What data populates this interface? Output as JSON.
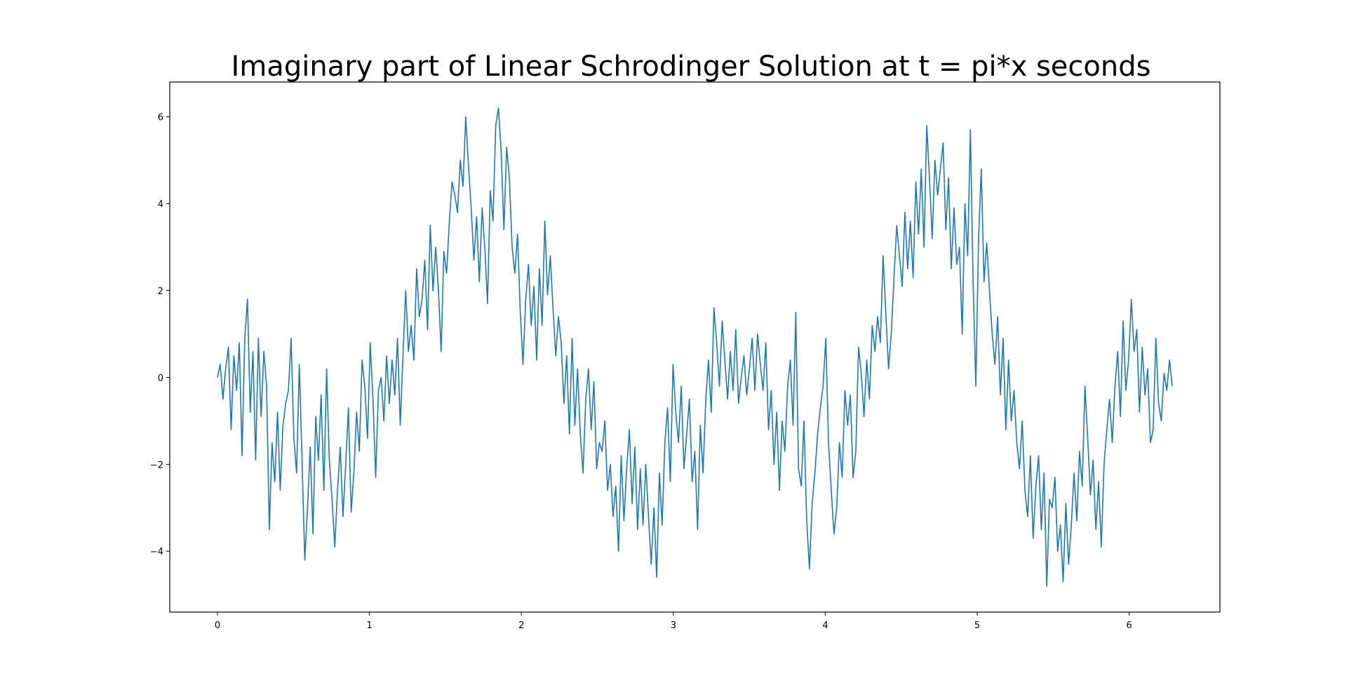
{
  "chart_data": {
    "type": "line",
    "title": "Imaginary part of Linear Schrodinger Solution at t = pi*x seconds",
    "xlabel": "",
    "ylabel": "",
    "xlim": [
      -0.314,
      6.597
    ],
    "ylim": [
      -5.4,
      6.8
    ],
    "x_ticks": [
      0,
      1,
      2,
      3,
      4,
      5,
      6
    ],
    "x_tick_labels": [
      "0",
      "1",
      "2",
      "3",
      "4",
      "5",
      "6"
    ],
    "y_ticks": [
      -4,
      -2,
      0,
      2,
      4,
      6
    ],
    "y_tick_labels": [
      "−4",
      "−2",
      "0",
      "2",
      "4",
      "6"
    ],
    "grid": false,
    "legend": "none",
    "line_color": "#1f77b4",
    "series": [
      {
        "x_start": 0,
        "x_end": 6.2832,
        "values": [
          0.0,
          0.3,
          -0.5,
          0.2,
          0.7,
          -1.2,
          0.5,
          -0.3,
          0.8,
          -1.8,
          0.9,
          1.8,
          -0.8,
          0.6,
          -1.9,
          0.9,
          -0.9,
          0.6,
          -0.2,
          -3.5,
          -1.5,
          -2.4,
          -0.8,
          -2.6,
          -1.1,
          -0.6,
          -0.3,
          0.9,
          -1.4,
          -2.2,
          0.3,
          -1.9,
          -4.2,
          -3.0,
          -1.6,
          -3.6,
          -0.9,
          -1.9,
          -0.4,
          -2.6,
          0.2,
          -1.9,
          -2.8,
          -3.9,
          -2.6,
          -1.6,
          -3.2,
          -2.0,
          -0.7,
          -3.1,
          -2.2,
          -0.8,
          -1.7,
          0.4,
          -0.2,
          -1.4,
          0.8,
          -0.5,
          -2.3,
          -0.3,
          0.0,
          -1.0,
          0.5,
          -0.6,
          0.4,
          -0.4,
          0.9,
          -1.1,
          0.5,
          2.0,
          0.6,
          1.2,
          0.4,
          2.5,
          1.4,
          1.8,
          2.7,
          1.1,
          3.5,
          2.0,
          3.0,
          2.0,
          0.6,
          2.9,
          2.4,
          3.6,
          4.5,
          4.2,
          3.8,
          5.0,
          4.4,
          6.0,
          4.9,
          3.9,
          2.7,
          3.7,
          2.2,
          3.9,
          3.0,
          1.7,
          4.3,
          3.6,
          5.8,
          6.2,
          5.2,
          3.4,
          5.3,
          4.6,
          3.0,
          2.4,
          3.3,
          1.5,
          0.3,
          1.8,
          2.6,
          1.2,
          2.1,
          0.4,
          2.5,
          1.2,
          3.6,
          1.9,
          2.8,
          1.6,
          0.5,
          1.4,
          0.8,
          -0.6,
          0.5,
          -1.3,
          0.9,
          -1.1,
          0.2,
          -1.3,
          -2.2,
          -0.5,
          0.2,
          -1.2,
          -0.1,
          -2.1,
          -1.5,
          -1.7,
          -1.0,
          -2.6,
          -2.0,
          -3.2,
          -2.5,
          -4.0,
          -1.8,
          -3.3,
          -2.1,
          -1.2,
          -2.9,
          -1.6,
          -3.5,
          -2.1,
          -3.4,
          -2.0,
          -3.2,
          -4.3,
          -3.0,
          -4.6,
          -2.2,
          -3.4,
          -1.5,
          -0.7,
          -2.4,
          0.3,
          -0.8,
          -1.5,
          -0.2,
          -2.1,
          -1.3,
          -0.5,
          -2.4,
          -1.7,
          -3.5,
          -1.1,
          -2.2,
          -0.5,
          0.4,
          -0.8,
          1.6,
          0.8,
          -0.2,
          1.3,
          0.4,
          -0.5,
          0.6,
          -0.3,
          1.1,
          -0.6,
          0.0,
          0.5,
          -0.4,
          0.2,
          0.9,
          -0.3,
          1.0,
          0.3,
          -0.3,
          0.8,
          -1.2,
          -0.3,
          -2.0,
          -0.8,
          -2.6,
          -1.0,
          -1.7,
          -0.2,
          0.4,
          -1.1,
          1.5,
          -2.1,
          -2.5,
          -1.0,
          -3.3,
          -4.4,
          -2.9,
          -2.2,
          -1.3,
          -0.7,
          -0.2,
          0.9,
          -1.5,
          -2.6,
          -3.6,
          -3.0,
          -1.5,
          -2.3,
          -0.3,
          -1.1,
          -0.4,
          -2.3,
          -1.7,
          0.7,
          0.1,
          -0.9,
          0.4,
          -0.5,
          1.2,
          0.6,
          1.4,
          0.8,
          2.8,
          1.5,
          0.2,
          1.0,
          2.3,
          3.5,
          2.8,
          2.1,
          3.8,
          2.5,
          3.6,
          2.3,
          4.5,
          3.3,
          4.8,
          3.0,
          5.8,
          4.6,
          3.2,
          5.0,
          4.2,
          4.8,
          5.4,
          3.4,
          4.6,
          2.5,
          3.9,
          2.6,
          3.0,
          1.0,
          4.0,
          2.8,
          5.7,
          2.2,
          -0.2,
          3.2,
          4.8,
          2.2,
          3.1,
          2.0,
          1.0,
          0.3,
          1.4,
          -0.4,
          0.9,
          -1.2,
          0.4,
          -1.0,
          -0.3,
          -1.5,
          -2.1,
          -1.0,
          -2.6,
          -3.2,
          -1.8,
          -3.7,
          -2.5,
          -1.8,
          -3.5,
          -2.2,
          -4.8,
          -2.8,
          -3.0,
          -2.3,
          -4.0,
          -3.4,
          -4.7,
          -2.9,
          -4.3,
          -3.4,
          -2.2,
          -3.3,
          -1.7,
          -2.5,
          -0.2,
          -1.4,
          -2.7,
          -1.9,
          -3.5,
          -2.4,
          -3.9,
          -2.0,
          -1.2,
          -0.5,
          -1.5,
          -0.2,
          0.6,
          -0.9,
          1.3,
          -0.3,
          0.4,
          1.8,
          0.6,
          1.1,
          -0.8,
          0.7,
          -0.4,
          0.2,
          -1.5,
          -1.2,
          0.9,
          -0.6,
          -1.0,
          0.1,
          -0.3,
          0.4,
          -0.2
        ]
      }
    ]
  }
}
